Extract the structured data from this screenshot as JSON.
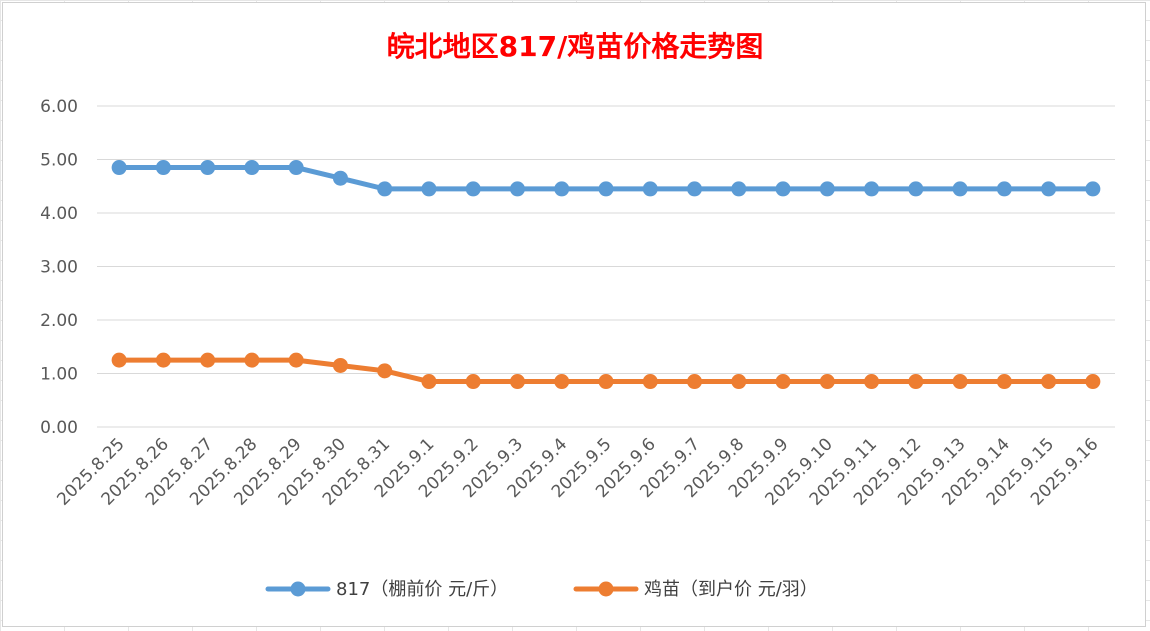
{
  "chart_data": {
    "type": "line",
    "title": "皖北地区817/鸡苗价格走势图",
    "xlabel": "",
    "ylabel": "",
    "ylim": [
      0,
      6
    ],
    "yticks": [
      "0.00",
      "1.00",
      "2.00",
      "3.00",
      "4.00",
      "5.00",
      "6.00"
    ],
    "grid": true,
    "legend_position": "bottom",
    "categories": [
      "2025.8.25",
      "2025.8.26",
      "2025.8.27",
      "2025.8.28",
      "2025.8.29",
      "2025.8.30",
      "2025.8.31",
      "2025.9.1",
      "2025.9.2",
      "2025.9.3",
      "2025.9.4",
      "2025.9.5",
      "2025.9.6",
      "2025.9.7",
      "2025.9.8",
      "2025.9.9",
      "2025.9.10",
      "2025.9.11",
      "2025.9.12",
      "2025.9.13",
      "2025.9.14",
      "2025.9.15",
      "2025.9.16"
    ],
    "series": [
      {
        "name": "817（棚前价 元/斤）",
        "color": "#5b9bd5",
        "values": [
          4.85,
          4.85,
          4.85,
          4.85,
          4.85,
          4.65,
          4.45,
          4.45,
          4.45,
          4.45,
          4.45,
          4.45,
          4.45,
          4.45,
          4.45,
          4.45,
          4.45,
          4.45,
          4.45,
          4.45,
          4.45,
          4.45,
          4.45
        ]
      },
      {
        "name": "鸡苗（到户价 元/羽）",
        "color": "#ed7d31",
        "values": [
          1.25,
          1.25,
          1.25,
          1.25,
          1.25,
          1.15,
          1.05,
          0.85,
          0.85,
          0.85,
          0.85,
          0.85,
          0.85,
          0.85,
          0.85,
          0.85,
          0.85,
          0.85,
          0.85,
          0.85,
          0.85,
          0.85,
          0.85
        ]
      }
    ]
  }
}
